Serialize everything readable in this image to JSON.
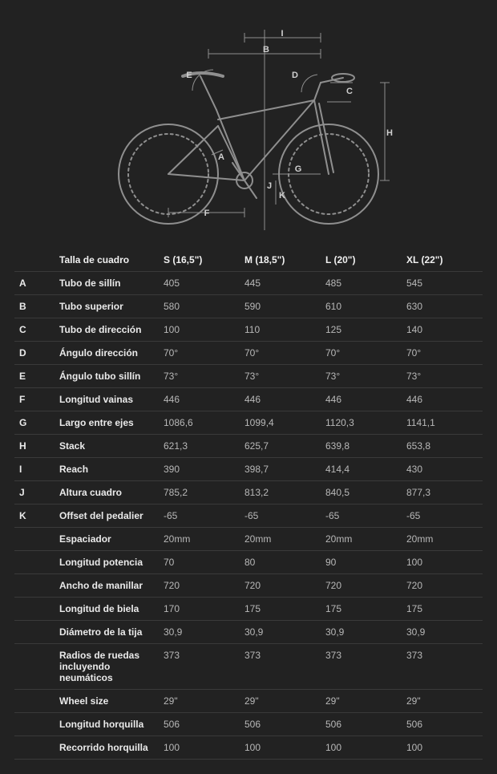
{
  "page": {
    "background": "#222222",
    "text_color": "#d0d0d0",
    "line_color": "#888888",
    "accent_text": "#eaeaea",
    "border_color": "#3a3a3a",
    "font_size": 12
  },
  "diagram": {
    "type": "bike-geometry",
    "stroke": "#8f8f8f",
    "labels": [
      "A",
      "B",
      "C",
      "D",
      "E",
      "F",
      "G",
      "H",
      "I",
      "J",
      "K"
    ]
  },
  "geometry_table": {
    "type": "table",
    "header_label": "Talla de cuadro",
    "columns": [
      "S (16,5\")",
      "M (18,5\")",
      "L (20\")",
      "XL (22\")"
    ],
    "rows": [
      {
        "letter": "A",
        "label": "Tubo de sillín",
        "values": [
          "405",
          "445",
          "485",
          "545"
        ]
      },
      {
        "letter": "B",
        "label": "Tubo superior",
        "values": [
          "580",
          "590",
          "610",
          "630"
        ]
      },
      {
        "letter": "C",
        "label": "Tubo de dirección",
        "values": [
          "100",
          "110",
          "125",
          "140"
        ]
      },
      {
        "letter": "D",
        "label": "Ángulo dirección",
        "values": [
          "70°",
          "70°",
          "70°",
          "70°"
        ]
      },
      {
        "letter": "E",
        "label": "Ángulo tubo sillín",
        "values": [
          "73°",
          "73°",
          "73°",
          "73°"
        ]
      },
      {
        "letter": "F",
        "label": "Longitud vainas",
        "values": [
          "446",
          "446",
          "446",
          "446"
        ]
      },
      {
        "letter": "G",
        "label": "Largo entre ejes",
        "values": [
          "1086,6",
          "1099,4",
          "1120,3",
          "1141,1"
        ]
      },
      {
        "letter": "H",
        "label": "Stack",
        "values": [
          "621,3",
          "625,7",
          "639,8",
          "653,8"
        ]
      },
      {
        "letter": "I",
        "label": "Reach",
        "values": [
          "390",
          "398,7",
          "414,4",
          "430"
        ]
      },
      {
        "letter": "J",
        "label": "Altura cuadro",
        "values": [
          "785,2",
          "813,2",
          "840,5",
          "877,3"
        ]
      },
      {
        "letter": "K",
        "label": "Offset del pedalier",
        "values": [
          "-65",
          "-65",
          "-65",
          "-65"
        ]
      },
      {
        "letter": "",
        "label": "Espaciador",
        "values": [
          "20mm",
          "20mm",
          "20mm",
          "20mm"
        ]
      },
      {
        "letter": "",
        "label": "Longitud potencia",
        "values": [
          "70",
          "80",
          "90",
          "100"
        ]
      },
      {
        "letter": "",
        "label": "Ancho de manillar",
        "values": [
          "720",
          "720",
          "720",
          "720"
        ]
      },
      {
        "letter": "",
        "label": "Longitud de biela",
        "values": [
          "170",
          "175",
          "175",
          "175"
        ]
      },
      {
        "letter": "",
        "label": "Diámetro de la tija",
        "values": [
          "30,9",
          "30,9",
          "30,9",
          "30,9"
        ]
      },
      {
        "letter": "",
        "label": "Radios de ruedas incluyendo neumáticos",
        "values": [
          "373",
          "373",
          "373",
          "373"
        ]
      },
      {
        "letter": "",
        "label": "Wheel size",
        "values": [
          "29\"",
          "29\"",
          "29\"",
          "29\""
        ]
      },
      {
        "letter": "",
        "label": "Longitud horquilla",
        "values": [
          "506",
          "506",
          "506",
          "506"
        ]
      },
      {
        "letter": "",
        "label": "Recorrido horquilla",
        "values": [
          "100",
          "100",
          "100",
          "100"
        ]
      }
    ]
  }
}
